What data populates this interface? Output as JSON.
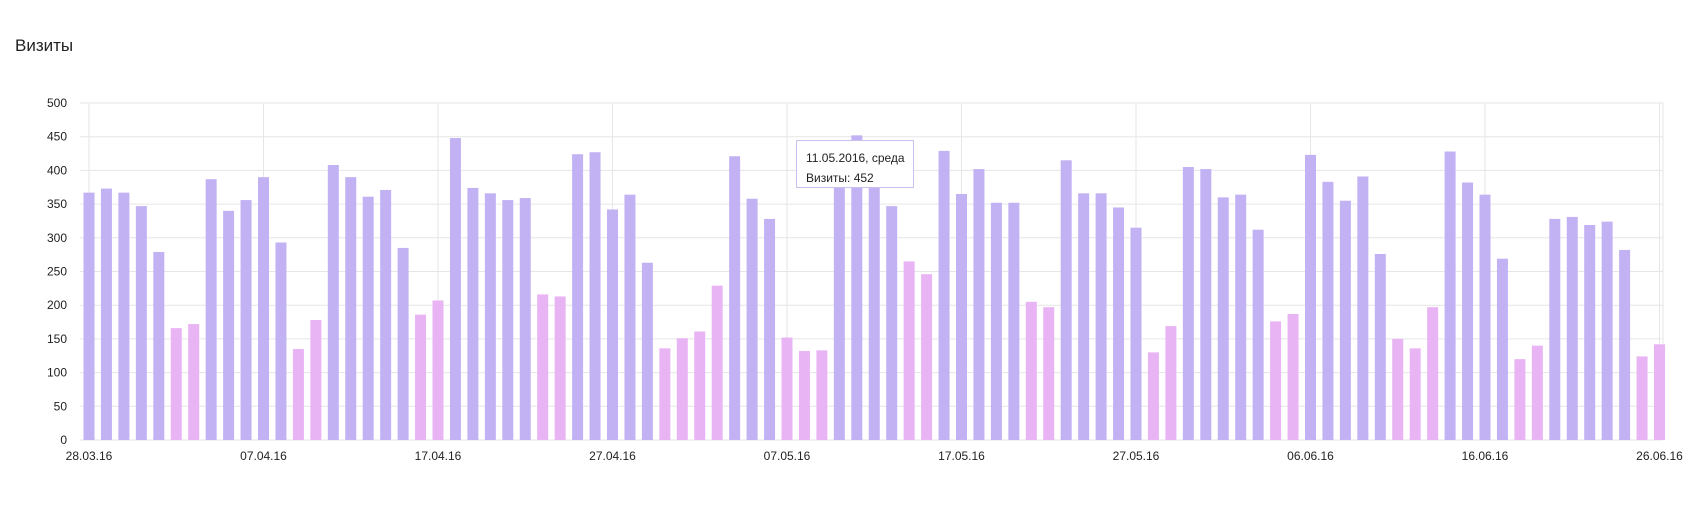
{
  "title": "Визиты",
  "colors": {
    "weekday": "#c2b2f4",
    "weekend": "#e9b4f4",
    "holiday_label": "#b81e1e",
    "grid": "#e6e6e6",
    "tooltip_border": "#c9c0f0"
  },
  "tooltip": {
    "date": "11.05.2016, среда",
    "value_label": "Визиты: 452"
  },
  "chart_data": {
    "type": "bar",
    "title": "Визиты",
    "xlabel": "",
    "ylabel": "",
    "ylim": [
      0,
      500
    ],
    "yticks": [
      0,
      50,
      100,
      150,
      200,
      250,
      300,
      350,
      400,
      450,
      500
    ],
    "grid": true,
    "x_start": "28.03.16",
    "x_end": "26.06.16",
    "xtick_labels": [
      {
        "label": "28.03.16",
        "index": 0,
        "holiday": false
      },
      {
        "label": "07.04.16",
        "index": 10,
        "holiday": false
      },
      {
        "label": "17.04.16",
        "index": 20,
        "holiday": true
      },
      {
        "label": "27.04.16",
        "index": 30,
        "holiday": false
      },
      {
        "label": "07.05.16",
        "index": 40,
        "holiday": true
      },
      {
        "label": "17.05.16",
        "index": 50,
        "holiday": false
      },
      {
        "label": "27.05.16",
        "index": 60,
        "holiday": false
      },
      {
        "label": "06.06.16",
        "index": 70,
        "holiday": false
      },
      {
        "label": "16.06.16",
        "index": 80,
        "holiday": false
      },
      {
        "label": "26.06.16",
        "index": 90,
        "holiday": true
      }
    ],
    "series": [
      {
        "values": [
          367,
          373,
          367,
          347,
          279,
          166,
          172,
          387,
          340,
          356,
          390,
          293,
          135,
          178,
          408,
          390,
          361,
          371,
          285,
          186,
          207,
          448,
          374,
          366,
          356,
          359,
          216,
          213,
          424,
          427,
          342,
          364,
          263,
          136,
          151,
          161,
          229,
          421,
          358,
          328,
          152,
          132,
          133,
          385,
          452,
          380,
          347,
          265,
          246,
          429,
          365,
          402,
          352,
          352,
          205,
          197,
          415,
          366,
          366,
          345,
          315,
          130,
          169,
          405,
          402,
          360,
          364,
          312,
          176,
          187,
          423,
          383,
          355,
          391,
          276,
          150,
          136,
          197,
          428,
          382,
          364,
          269,
          120,
          140,
          328,
          331,
          319,
          324,
          282,
          124,
          142
        ],
        "weekend": [
          false,
          false,
          false,
          false,
          false,
          true,
          true,
          false,
          false,
          false,
          false,
          false,
          true,
          true,
          false,
          false,
          false,
          false,
          false,
          true,
          true,
          false,
          false,
          false,
          false,
          false,
          true,
          true,
          false,
          false,
          false,
          false,
          false,
          true,
          true,
          true,
          true,
          false,
          false,
          false,
          true,
          true,
          true,
          false,
          false,
          false,
          false,
          true,
          true,
          false,
          false,
          false,
          false,
          false,
          true,
          true,
          false,
          false,
          false,
          false,
          false,
          true,
          true,
          false,
          false,
          false,
          false,
          false,
          true,
          true,
          false,
          false,
          false,
          false,
          false,
          true,
          true,
          true,
          false,
          false,
          false,
          false,
          true,
          true,
          false,
          false,
          false,
          false,
          false,
          true,
          true
        ]
      }
    ]
  }
}
